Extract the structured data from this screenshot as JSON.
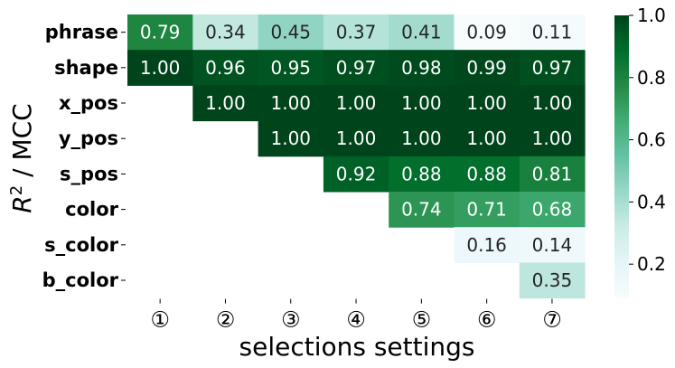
{
  "chart_data": {
    "type": "heatmap",
    "xlabel": "selections settings",
    "ylabel": "R² / MCC",
    "ylabel_main": "R",
    "ylabel_sup": "2",
    "ylabel_rest": " / MCC",
    "x_categories": [
      "①",
      "②",
      "③",
      "④",
      "⑤",
      "⑥",
      "⑦"
    ],
    "y_categories": [
      "phrase",
      "shape",
      "x_pos",
      "y_pos",
      "s_pos",
      "color",
      "s_color",
      "b_color"
    ],
    "values": [
      [
        0.79,
        0.34,
        0.45,
        0.37,
        0.41,
        0.09,
        0.11
      ],
      [
        1.0,
        0.96,
        0.95,
        0.97,
        0.98,
        0.99,
        0.97
      ],
      [
        null,
        1.0,
        1.0,
        1.0,
        1.0,
        1.0,
        1.0
      ],
      [
        null,
        null,
        1.0,
        1.0,
        1.0,
        1.0,
        1.0
      ],
      [
        null,
        null,
        null,
        0.92,
        0.88,
        0.88,
        0.81
      ],
      [
        null,
        null,
        null,
        null,
        0.74,
        0.71,
        0.68
      ],
      [
        null,
        null,
        null,
        null,
        null,
        0.16,
        0.14
      ],
      [
        null,
        null,
        null,
        null,
        null,
        null,
        0.35
      ]
    ],
    "colorbar": {
      "min": 0.09,
      "max": 1.0,
      "ticks": [
        "0.2",
        "0.4",
        "0.6",
        "0.8",
        "1.0"
      ],
      "tick_values": [
        0.2,
        0.4,
        0.6,
        0.8,
        1.0
      ],
      "colormap": "BuGn",
      "colors": [
        "#f7fcfd",
        "#e5f5f9",
        "#ccece6",
        "#99d8c9",
        "#66c2a4",
        "#41ae76",
        "#238b45",
        "#006d2c",
        "#00441b"
      ]
    },
    "grid": false
  }
}
